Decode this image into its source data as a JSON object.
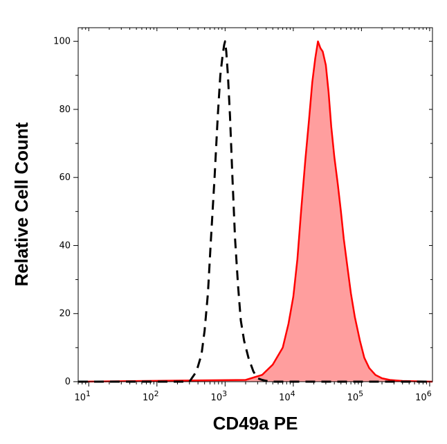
{
  "chart_data": {
    "type": "area",
    "title": "",
    "xlabel": "CD49a PE",
    "ylabel": "Relative Cell Count",
    "x_scale": "log",
    "xlim": [
      7,
      1100000
    ],
    "ylim": [
      0,
      104
    ],
    "x_ticks": [
      {
        "value": 10,
        "base": "10",
        "exp": "1"
      },
      {
        "value": 100,
        "base": "10",
        "exp": "2"
      },
      {
        "value": 1000,
        "base": "10",
        "exp": "3"
      },
      {
        "value": 10000,
        "base": "10",
        "exp": "4"
      },
      {
        "value": 100000,
        "base": "10",
        "exp": "5"
      },
      {
        "value": 1000000,
        "base": "10",
        "exp": "6"
      }
    ],
    "y_ticks": [
      0,
      20,
      40,
      60,
      80,
      100
    ],
    "grid": false,
    "legend": "none",
    "series": [
      {
        "style": "dashed",
        "color": "#000000",
        "x": [
          7,
          300,
          380,
          450,
          500,
          560,
          620,
          700,
          780,
          850,
          920,
          970,
          1000,
          1040,
          1100,
          1180,
          1280,
          1400,
          1550,
          1700,
          1900,
          2200,
          2600,
          3000,
          3500,
          4500,
          1100000
        ],
        "y": [
          0,
          0,
          3,
          8,
          15,
          26,
          42,
          60,
          78,
          90,
          96,
          99,
          100,
          97,
          90,
          78,
          60,
          42,
          28,
          18,
          12,
          7,
          3,
          1,
          0.5,
          0,
          0
        ]
      },
      {
        "style": "filled",
        "color": "#ff0000",
        "fill": "#ff9e9e",
        "x": [
          7,
          2000,
          3500,
          5000,
          7000,
          8500,
          10000,
          11500,
          13000,
          15000,
          17000,
          19000,
          21000,
          23000,
          25000,
          27000,
          30000,
          33000,
          36000,
          40000,
          45000,
          50000,
          55000,
          62000,
          70000,
          80000,
          95000,
          110000,
          130000,
          160000,
          200000,
          260000,
          400000,
          1100000
        ],
        "y": [
          0,
          0.5,
          2,
          5,
          10,
          17,
          25,
          36,
          50,
          65,
          77,
          88,
          95,
          100,
          98,
          97,
          93,
          85,
          75,
          66,
          58,
          50,
          42,
          34,
          26,
          19,
          12,
          7,
          4,
          2,
          1,
          0.5,
          0.2,
          0
        ]
      }
    ]
  }
}
